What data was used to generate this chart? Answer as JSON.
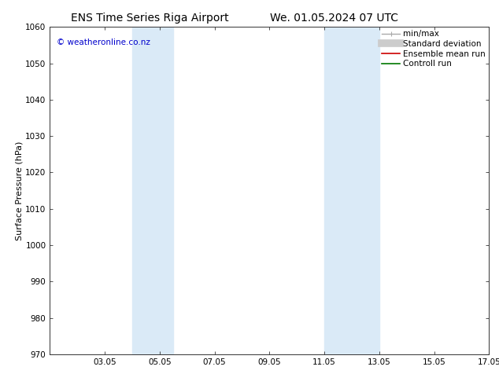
{
  "title_left": "ENS Time Series Riga Airport",
  "title_right": "We. 01.05.2024 07 UTC",
  "ylabel": "Surface Pressure (hPa)",
  "ylim": [
    970,
    1060
  ],
  "yticks": [
    970,
    980,
    990,
    1000,
    1010,
    1020,
    1030,
    1040,
    1050,
    1060
  ],
  "xlim": [
    1.0,
    17.0
  ],
  "xtick_labels": [
    "03.05",
    "05.05",
    "07.05",
    "09.05",
    "11.05",
    "13.05",
    "15.05",
    "17.05"
  ],
  "xtick_positions": [
    3,
    5,
    7,
    9,
    11,
    13,
    15,
    17
  ],
  "shaded_bands": [
    {
      "x_start": 4.0,
      "x_end": 5.5,
      "color": "#daeaf7"
    },
    {
      "x_start": 11.0,
      "x_end": 13.0,
      "color": "#daeaf7"
    }
  ],
  "watermark_text": "© weatheronline.co.nz",
  "watermark_color": "#0000cc",
  "legend_entries": [
    {
      "label": "min/max",
      "color": "#aaaaaa"
    },
    {
      "label": "Standard deviation",
      "color": "#cccccc"
    },
    {
      "label": "Ensemble mean run",
      "color": "#cc0000"
    },
    {
      "label": "Controll run",
      "color": "#007700"
    }
  ],
  "background_color": "#ffffff",
  "plot_background": "#ffffff",
  "title_fontsize": 10,
  "tick_fontsize": 7.5,
  "ylabel_fontsize": 8,
  "legend_fontsize": 7.5
}
